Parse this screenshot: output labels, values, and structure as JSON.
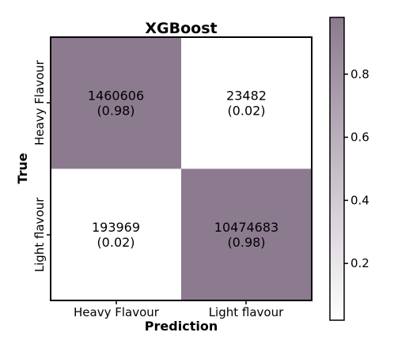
{
  "chart_data": {
    "type": "heatmap",
    "title": "XGBoost",
    "xlabel": "Prediction",
    "ylabel": "True",
    "x_categories": [
      "Heavy Flavour",
      "Light flavour"
    ],
    "y_categories": [
      "Heavy Flavour",
      "Light flavour"
    ],
    "cells": [
      [
        {
          "count": "1460606",
          "fraction": "(0.98)",
          "value": 0.98
        },
        {
          "count": "23482",
          "fraction": "(0.02)",
          "value": 0.02
        }
      ],
      [
        {
          "count": "193969",
          "fraction": "(0.02)",
          "value": 0.02
        },
        {
          "count": "10474683",
          "fraction": "(0.98)",
          "value": 0.98
        }
      ]
    ],
    "colorbar": {
      "range": [
        0.02,
        0.98
      ],
      "ticks": [
        "0.2",
        "0.4",
        "0.6",
        "0.8"
      ],
      "color_low": "#ffffff",
      "color_high": "#8c7a8f"
    }
  }
}
